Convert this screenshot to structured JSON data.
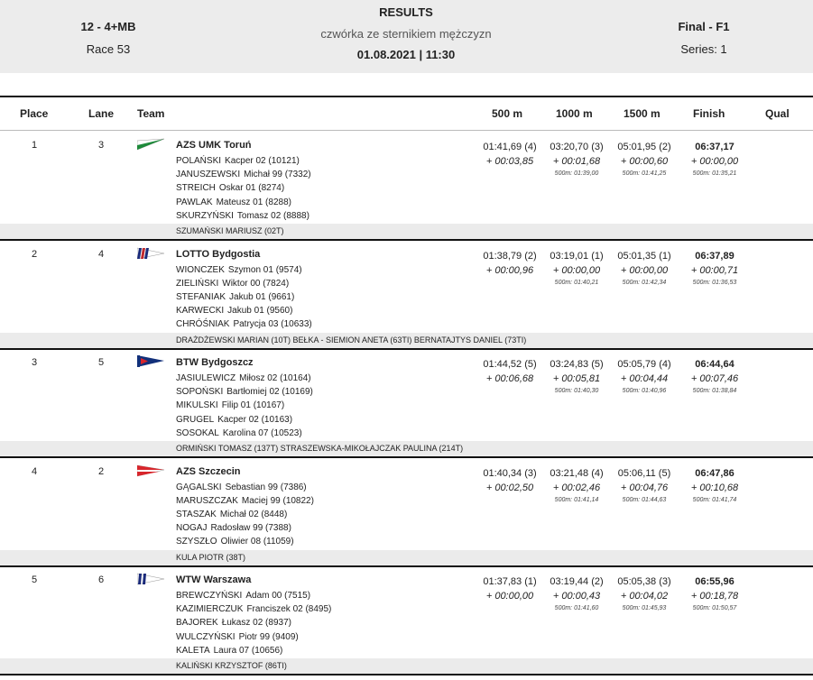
{
  "header": {
    "event_code": "12 - 4+MB",
    "race": "Race 53",
    "title": "RESULTS",
    "subtitle": "czwórka ze sternikiem mężczyzn",
    "datetime": "01.08.2021 | 11:30",
    "final": "Final - F1",
    "series": "Series: 1"
  },
  "columns": {
    "place": "Place",
    "lane": "Lane",
    "team": "Team",
    "s500": "500 m",
    "s1000": "1000 m",
    "s1500": "1500 m",
    "finish": "Finish",
    "qual": "Qual"
  },
  "results": [
    {
      "place": "1",
      "lane": "3",
      "team": "AZS UMK Toruń",
      "flag": "green-white-pennant",
      "rowers": [
        {
          "surname": "POLAŃSKI",
          "name": "Kacper 02 (10121)"
        },
        {
          "surname": "JANUSZEWSKI",
          "name": "Michał 99 (7332)"
        },
        {
          "surname": "STREICH",
          "name": "Oskar 01 (8274)"
        },
        {
          "surname": "PAWLAK",
          "name": "Mateusz 01 (8288)"
        },
        {
          "surname": "SKURZYŃSKI",
          "name": "Tomasz 02 (8888)"
        }
      ],
      "coach": "SZUMAŃSKI MARIUSZ (02T)",
      "s500": {
        "time": "01:41,69 (4)",
        "diff": "+ 00:03,85"
      },
      "s1000": {
        "time": "03:20,70 (3)",
        "diff": "+ 00:01,68",
        "pace": "500m: 01:39,00"
      },
      "s1500": {
        "time": "05:01,95 (2)",
        "diff": "+ 00:00,60",
        "pace": "500m: 01:41,25"
      },
      "finish": {
        "time": "06:37,17",
        "diff": "+ 00:00,00",
        "pace": "500m: 01:35,21"
      }
    },
    {
      "place": "2",
      "lane": "4",
      "team": "LOTTO Bydgostia",
      "flag": "striped-pennant",
      "rowers": [
        {
          "surname": "WIONCZEK",
          "name": "Szymon 01 (9574)"
        },
        {
          "surname": "ZIELIŃSKI",
          "name": "Wiktor 00 (7824)"
        },
        {
          "surname": "STEFANIAK",
          "name": "Jakub 01 (9661)"
        },
        {
          "surname": "KARWECKI",
          "name": "Jakub 01 (9560)"
        },
        {
          "surname": "CHRÓŚNIAK",
          "name": "Patrycja 03 (10633)"
        }
      ],
      "coach": "DRAŻDŻEWSKI MARIAN (10T) BEŁKA - SIEMION ANETA (63TI) BERNATAJTYS DANIEL (73TI)",
      "s500": {
        "time": "01:38,79 (2)",
        "diff": "+ 00:00,96"
      },
      "s1000": {
        "time": "03:19,01 (1)",
        "diff": "+ 00:00,00",
        "pace": "500m: 01:40,21"
      },
      "s1500": {
        "time": "05:01,35 (1)",
        "diff": "+ 00:00,00",
        "pace": "500m: 01:42,34"
      },
      "finish": {
        "time": "06:37,89",
        "diff": "+ 00:00,71",
        "pace": "500m: 01:36,53"
      }
    },
    {
      "place": "3",
      "lane": "5",
      "team": "BTW Bydgoszcz",
      "flag": "blue-red-pennant",
      "rowers": [
        {
          "surname": "JASIULEWICZ",
          "name": "Miłosz 02 (10164)"
        },
        {
          "surname": "SOPOŃSKI",
          "name": "Bartłomiej 02 (10169)"
        },
        {
          "surname": "MIKULSKI",
          "name": "Filip 01 (10167)"
        },
        {
          "surname": "GRUGEL",
          "name": "Kacper 02 (10163)"
        },
        {
          "surname": "SOSOKAL",
          "name": "Karolina 07 (10523)"
        }
      ],
      "coach": "ORMIŃSKI TOMASZ (137T) STRASZEWSKA-MIKOŁAJCZAK PAULINA (214T)",
      "s500": {
        "time": "01:44,52 (5)",
        "diff": "+ 00:06,68"
      },
      "s1000": {
        "time": "03:24,83 (5)",
        "diff": "+ 00:05,81",
        "pace": "500m: 01:40,30"
      },
      "s1500": {
        "time": "05:05,79 (4)",
        "diff": "+ 00:04,44",
        "pace": "500m: 01:40,96"
      },
      "finish": {
        "time": "06:44,64",
        "diff": "+ 00:07,46",
        "pace": "500m: 01:38,84"
      }
    },
    {
      "place": "4",
      "lane": "2",
      "team": "AZS Szczecin",
      "flag": "red-white-pennant",
      "rowers": [
        {
          "surname": "GĄGALSKI",
          "name": "Sebastian 99 (7386)"
        },
        {
          "surname": "MARUSZCZAK",
          "name": "Maciej 99 (10822)"
        },
        {
          "surname": "STASZAK",
          "name": "Michał 02 (8448)"
        },
        {
          "surname": "NOGAJ",
          "name": "Radosław 99 (7388)"
        },
        {
          "surname": "SZYSZŁO",
          "name": "Oliwier 08 (11059)"
        }
      ],
      "coach": "KULA PIOTR (38T)",
      "s500": {
        "time": "01:40,34 (3)",
        "diff": "+ 00:02,50"
      },
      "s1000": {
        "time": "03:21,48 (4)",
        "diff": "+ 00:02,46",
        "pace": "500m: 01:41,14"
      },
      "s1500": {
        "time": "05:06,11 (5)",
        "diff": "+ 00:04,76",
        "pace": "500m: 01:44,63"
      },
      "finish": {
        "time": "06:47,86",
        "diff": "+ 00:10,68",
        "pace": "500m: 01:41,74"
      }
    },
    {
      "place": "5",
      "lane": "6",
      "team": "WTW Warszawa",
      "flag": "navy-white-pennant",
      "rowers": [
        {
          "surname": "BREWCZYŃSKI",
          "name": "Adam 00 (7515)"
        },
        {
          "surname": "KAZIMIERCZUK",
          "name": "Franciszek 02 (8495)"
        },
        {
          "surname": "BAJOREK",
          "name": "Łukasz 02 (8937)"
        },
        {
          "surname": "WULCZYŃSKI",
          "name": "Piotr 99 (9409)"
        },
        {
          "surname": "KALETA",
          "name": "Laura 07 (10656)"
        }
      ],
      "coach": "KALIŃSKI KRZYSZTOF (86TI)",
      "s500": {
        "time": "01:37,83 (1)",
        "diff": "+ 00:00,00"
      },
      "s1000": {
        "time": "03:19,44 (2)",
        "diff": "+ 00:00,43",
        "pace": "500m: 01:41,60"
      },
      "s1500": {
        "time": "05:05,38 (3)",
        "diff": "+ 00:04,02",
        "pace": "500m: 01:45,93"
      },
      "finish": {
        "time": "06:55,96",
        "diff": "+ 00:18,78",
        "pace": "500m: 01:50,57"
      }
    }
  ]
}
